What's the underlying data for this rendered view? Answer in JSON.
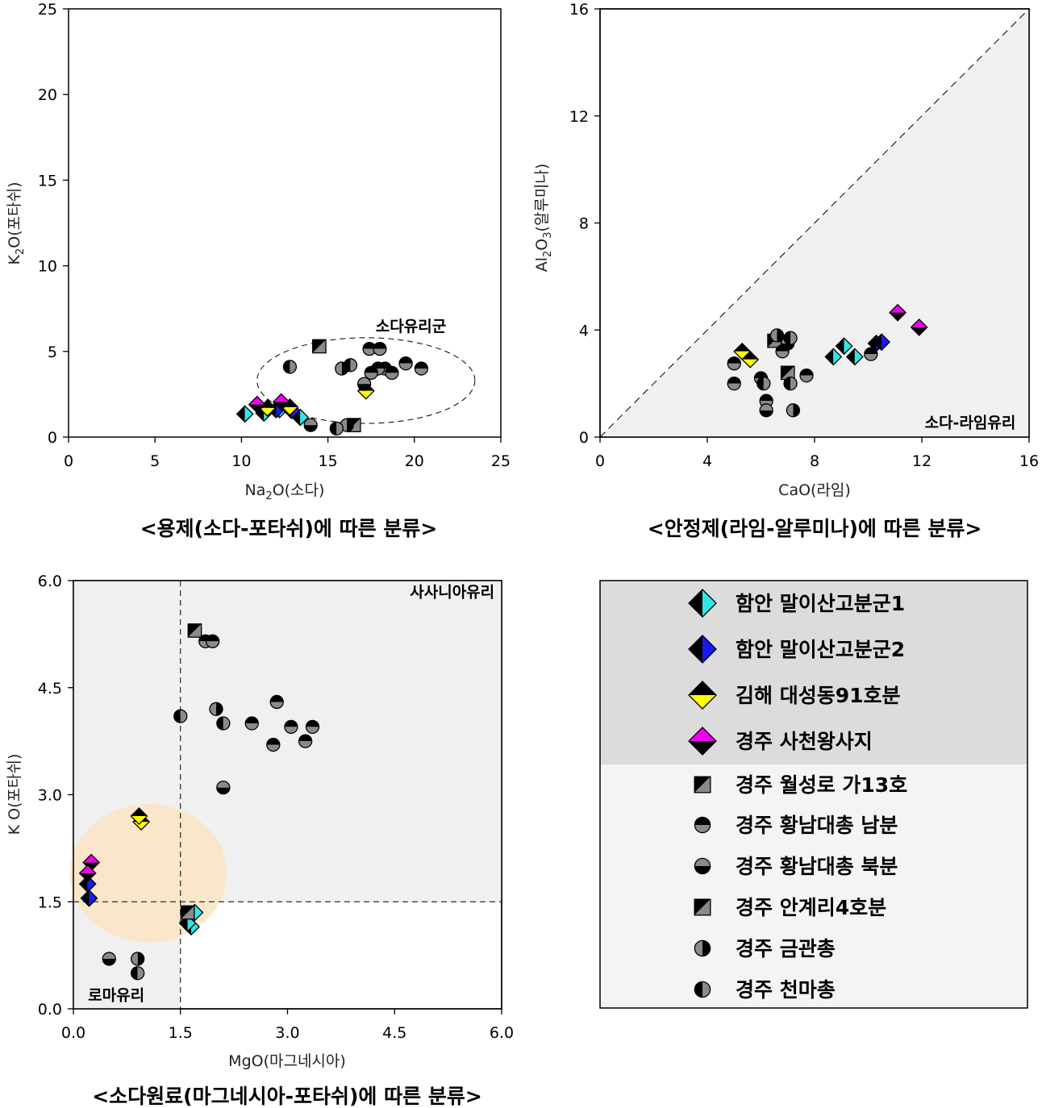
{
  "colors": {
    "cyan": "#33e6e6",
    "blue": "#1a1aee",
    "yellow": "#ffff00",
    "magenta": "#ee00ee",
    "gray": "#8a8a8a",
    "light_region": "#f0f0f0",
    "legend_dark": "#dcdcdc",
    "legend_light": "#f4f4f4",
    "highlight": "#fae4c4"
  },
  "legend": {
    "items": [
      {
        "label": "함안 말이산고분군1",
        "marker": "diamond-lr",
        "color": "#33e6e6"
      },
      {
        "label": "함안 말이산고분군2",
        "marker": "diamond-lr",
        "color": "#1a1aee"
      },
      {
        "label": "김해 대성동91호분",
        "marker": "diamond-tb",
        "color": "#ffff00"
      },
      {
        "label": "경주 사천왕사지",
        "marker": "diamond-bt",
        "color": "#ee00ee"
      },
      {
        "label": "경주 월성로 가13호",
        "marker": "square-diag",
        "color": "#8a8a8a"
      },
      {
        "label": "경주 황남대총 남분",
        "marker": "circle-tb",
        "color": "#8a8a8a"
      },
      {
        "label": "경주 황남대총 북분",
        "marker": "circle-bt",
        "color": "#8a8a8a"
      },
      {
        "label": "경주 안계리4호분",
        "marker": "square-diag",
        "color": "#8a8a8a"
      },
      {
        "label": "경주 금관총",
        "marker": "circle-lr",
        "color": "#8a8a8a"
      },
      {
        "label": "경주 천마총",
        "marker": "circle-rl",
        "color": "#8a8a8a"
      }
    ]
  },
  "chart_data": [
    {
      "type": "scatter",
      "title": "<용제(소다-포타쉬)에 따른 분류>",
      "xlabel": "Na₂O(소다)",
      "ylabel": "K₂O(포타쉬)",
      "xlim": [
        0,
        25
      ],
      "ylim": [
        0,
        25
      ],
      "xticks": [
        0,
        5,
        10,
        15,
        20,
        25
      ],
      "yticks": [
        0,
        5,
        10,
        15,
        20,
        25
      ],
      "xtick_labels": [
        "0",
        "5",
        "10",
        "15",
        "20",
        "25"
      ],
      "ytick_labels": [
        "0",
        "5",
        "10",
        "15",
        "20",
        "25"
      ],
      "annotations": [
        {
          "text": "소다유리군",
          "x": 19.8,
          "y": 6.5
        }
      ],
      "ellipse": {
        "cx": 17.2,
        "cy": 3.3,
        "rx": 6.3,
        "ry": 2.5
      },
      "series": [
        {
          "name": "함안 말이산고분군1",
          "marker": "diamond-lr",
          "color": "#33e6e6",
          "points": [
            [
              10.2,
              1.35
            ],
            [
              11.3,
              1.4
            ],
            [
              13.4,
              1.15
            ],
            [
              12.2,
              1.6
            ]
          ]
        },
        {
          "name": "함안 말이산고분군2",
          "marker": "diamond-lr",
          "color": "#1a1aee",
          "points": [
            [
              12.0,
              1.6
            ],
            [
              12.9,
              1.55
            ]
          ]
        },
        {
          "name": "김해 대성동91호분",
          "marker": "diamond-tb",
          "color": "#ffff00",
          "points": [
            [
              17.2,
              2.7
            ],
            [
              11.5,
              1.7
            ],
            [
              12.8,
              1.75
            ]
          ]
        },
        {
          "name": "경주 사천왕사지",
          "marker": "diamond-bt",
          "color": "#ee00ee",
          "points": [
            [
              10.9,
              1.9
            ],
            [
              12.3,
              2.05
            ]
          ]
        },
        {
          "name": "경주 월성로 가13호",
          "marker": "square-diag",
          "color": "#8a8a8a",
          "points": [
            [
              14.5,
              5.3
            ]
          ]
        },
        {
          "name": "경주 황남대총 남분",
          "marker": "circle-tb",
          "color": "#8a8a8a",
          "points": [
            [
              17.4,
              5.15
            ],
            [
              18.0,
              5.15
            ],
            [
              18.3,
              4.0
            ],
            [
              17.9,
              4.0
            ],
            [
              19.5,
              4.3
            ],
            [
              20.4,
              4.0
            ],
            [
              18.7,
              3.75
            ],
            [
              17.5,
              3.75
            ]
          ]
        },
        {
          "name": "경주 황남대총 북분",
          "marker": "circle-bt",
          "color": "#8a8a8a",
          "points": [
            [
              14.0,
              0.7
            ],
            [
              17.1,
              3.1
            ]
          ]
        },
        {
          "name": "경주 안계리4호분",
          "marker": "square-diag",
          "color": "#8a8a8a",
          "points": [
            [
              16.5,
              0.7
            ]
          ]
        },
        {
          "name": "경주 금관총",
          "marker": "circle-lr",
          "color": "#8a8a8a",
          "points": [
            [
              15.8,
              4.0
            ],
            [
              16.1,
              0.7
            ]
          ]
        },
        {
          "name": "경주 천마총",
          "marker": "circle-rl",
          "color": "#8a8a8a",
          "points": [
            [
              12.8,
              4.1
            ],
            [
              16.3,
              4.2
            ],
            [
              15.5,
              0.5
            ]
          ]
        }
      ]
    },
    {
      "type": "scatter",
      "title": "<안정제(라임-알루미나)에 따른 분류>",
      "xlabel": "CaO(라임)",
      "ylabel": "Al₂O₃(알루미나)",
      "xlim": [
        0,
        16
      ],
      "ylim": [
        0,
        16
      ],
      "xticks": [
        0,
        4,
        8,
        12,
        16
      ],
      "yticks": [
        0,
        4,
        8,
        12,
        16
      ],
      "xtick_labels": [
        "0",
        "4",
        "8",
        "12",
        "16"
      ],
      "ytick_labels": [
        "0",
        "4",
        "8",
        "12",
        "16"
      ],
      "annotations": [
        {
          "text": "소다-라임유리",
          "x": 15.5,
          "y": 0.55
        }
      ],
      "diagonal_region": "below y = x shaded",
      "series": [
        {
          "name": "함안 말이산고분군1",
          "marker": "diamond-lr",
          "color": "#33e6e6",
          "points": [
            [
              8.7,
              3.0
            ],
            [
              9.1,
              3.4
            ],
            [
              9.5,
              3.0
            ]
          ]
        },
        {
          "name": "함안 말이산고분군2",
          "marker": "diamond-lr",
          "color": "#1a1aee",
          "points": [
            [
              10.3,
              3.5
            ],
            [
              10.5,
              3.55
            ]
          ]
        },
        {
          "name": "김해 대성동91호분",
          "marker": "diamond-tb",
          "color": "#ffff00",
          "points": [
            [
              5.3,
              3.2
            ],
            [
              5.6,
              2.9
            ]
          ]
        },
        {
          "name": "경주 사천왕사지",
          "marker": "diamond-bt",
          "color": "#ee00ee",
          "points": [
            [
              11.1,
              4.65
            ],
            [
              11.9,
              4.1
            ]
          ]
        },
        {
          "name": "경주 월성로 가13호",
          "marker": "square-diag",
          "color": "#8a8a8a",
          "points": [
            [
              6.5,
              3.6
            ]
          ]
        },
        {
          "name": "경주 황남대총 남분",
          "marker": "circle-tb",
          "color": "#8a8a8a",
          "points": [
            [
              5.0,
              2.75
            ],
            [
              5.0,
              2.0
            ],
            [
              6.0,
              2.2
            ],
            [
              6.2,
              1.35
            ],
            [
              6.8,
              3.2
            ],
            [
              7.7,
              2.3
            ],
            [
              7.0,
              3.6
            ],
            [
              10.1,
              3.1
            ]
          ]
        },
        {
          "name": "경주 황남대총 북분",
          "marker": "circle-bt",
          "color": "#8a8a8a",
          "points": [
            [
              6.2,
              1.0
            ],
            [
              7.0,
              3.5
            ]
          ]
        },
        {
          "name": "경주 안계리4호분",
          "marker": "square-diag",
          "color": "#8a8a8a",
          "points": [
            [
              7.0,
              2.4
            ]
          ]
        },
        {
          "name": "경주 금관총",
          "marker": "circle-lr",
          "color": "#8a8a8a",
          "points": [
            [
              6.6,
              3.8
            ],
            [
              7.2,
              1.0
            ]
          ]
        },
        {
          "name": "경주 천마총",
          "marker": "circle-rl",
          "color": "#8a8a8a",
          "points": [
            [
              7.1,
              2.0
            ],
            [
              7.1,
              3.7
            ],
            [
              6.1,
              2.0
            ]
          ]
        }
      ]
    },
    {
      "type": "scatter",
      "title": "<소다원료(마그네시아-포타쉬)에 따른 분류>",
      "xlabel": "MgO(마그네시아)",
      "ylabel": "K O(포타쉬)",
      "xlim": [
        0,
        6
      ],
      "ylim": [
        0,
        6
      ],
      "xticks": [
        0,
        1.5,
        3,
        4.5,
        6
      ],
      "yticks": [
        0,
        1.5,
        3,
        4.5,
        6
      ],
      "xtick_labels": [
        "0.0",
        "1.5",
        "3.0",
        "4.5",
        "6.0"
      ],
      "ytick_labels": [
        "0.0",
        "1.5",
        "3.0",
        "4.5",
        "6.0"
      ],
      "thresholds": {
        "x": 1.5,
        "y": 1.5
      },
      "annotations": [
        {
          "text": "사사니아유리",
          "x": 5.9,
          "y": 5.85
        },
        {
          "text": "로마유리",
          "x": 0.6,
          "y": 0.2
        }
      ],
      "highlight_circle": {
        "cx": 1.05,
        "cy": 1.9,
        "rx": 1.1,
        "ry": 0.97
      },
      "series": [
        {
          "name": "함안 말이산고분군1",
          "marker": "diamond-lr",
          "color": "#33e6e6",
          "points": [
            [
              1.7,
              1.35
            ],
            [
              1.65,
              1.15
            ],
            [
              1.6,
              1.2
            ]
          ]
        },
        {
          "name": "함안 말이산고분군2",
          "marker": "diamond-lr",
          "color": "#1a1aee",
          "points": [
            [
              0.2,
              1.75
            ],
            [
              0.22,
              1.55
            ]
          ]
        },
        {
          "name": "김해 대성동91호분",
          "marker": "diamond-tb",
          "color": "#ffff00",
          "points": [
            [
              0.95,
              2.62
            ],
            [
              0.92,
              2.7
            ]
          ]
        },
        {
          "name": "경주 사천왕사지",
          "marker": "diamond-bt",
          "color": "#ee00ee",
          "points": [
            [
              0.25,
              2.05
            ],
            [
              0.2,
              1.9
            ]
          ]
        },
        {
          "name": "경주 월성로 가13호",
          "marker": "square-diag",
          "color": "#8a8a8a",
          "points": [
            [
              1.7,
              5.3
            ]
          ]
        },
        {
          "name": "경주 황남대총 남분",
          "marker": "circle-tb",
          "color": "#8a8a8a",
          "points": [
            [
              1.85,
              5.15
            ],
            [
              1.95,
              5.15
            ],
            [
              2.5,
              4.0
            ],
            [
              2.85,
              4.3
            ],
            [
              3.05,
              3.95
            ],
            [
              3.35,
              3.95
            ],
            [
              3.25,
              3.75
            ],
            [
              2.8,
              3.7
            ]
          ]
        },
        {
          "name": "경주 황남대총 북분",
          "marker": "circle-bt",
          "color": "#8a8a8a",
          "points": [
            [
              0.5,
              0.7
            ],
            [
              2.1,
              3.1
            ]
          ]
        },
        {
          "name": "경주 안계리4호분",
          "marker": "square-diag",
          "color": "#8a8a8a",
          "points": [
            [
              1.6,
              1.35
            ]
          ]
        },
        {
          "name": "경주 금관총",
          "marker": "circle-lr",
          "color": "#8a8a8a",
          "points": [
            [
              2.0,
              4.2
            ],
            [
              0.9,
              0.7
            ]
          ]
        },
        {
          "name": "경주 천마총",
          "marker": "circle-rl",
          "color": "#8a8a8a",
          "points": [
            [
              1.5,
              4.1
            ],
            [
              2.1,
              4.0
            ],
            [
              0.9,
              0.5
            ]
          ]
        }
      ]
    }
  ]
}
